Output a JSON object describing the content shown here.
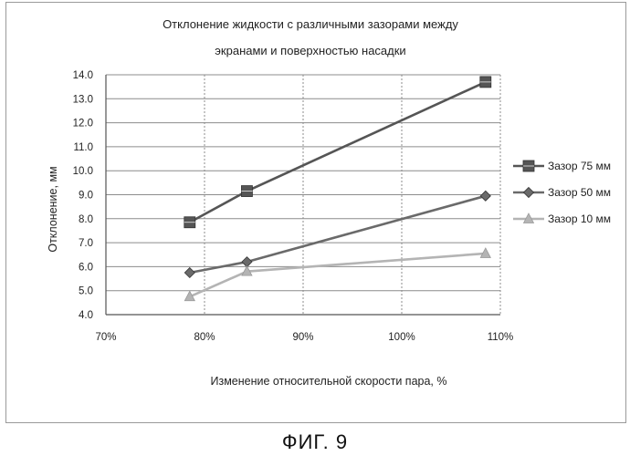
{
  "figure": {
    "caption": "ФИГ. 9"
  },
  "chart_data": {
    "type": "line",
    "title_lines": [
      "Отклонение жидкости с различными зазорами между",
      "экранами и поверхностью насадки"
    ],
    "xlabel": "Изменение относительной скорости пара, %",
    "ylabel": "Отклонение, мм",
    "xlim": [
      70,
      110
    ],
    "ylim": [
      4.0,
      14.0
    ],
    "x_ticks": [
      70,
      80,
      90,
      100,
      110
    ],
    "x_tick_labels": [
      "70%",
      "80%",
      "90%",
      "100%",
      "110%"
    ],
    "y_ticks": [
      4.0,
      5.0,
      6.0,
      7.0,
      8.0,
      9.0,
      10.0,
      11.0,
      12.0,
      13.0,
      14.0
    ],
    "y_tick_labels": [
      "4.0",
      "5.0",
      "6.0",
      "7.0",
      "8.0",
      "9.0",
      "10.0",
      "11.0",
      "12.0",
      "13.0",
      "14.0"
    ],
    "grid": true,
    "legend_position": "right",
    "series": [
      {
        "name": "Зазор 75 мм",
        "marker": "square",
        "color": "#555555",
        "x": [
          78.5,
          84.3,
          108.5
        ],
        "y": [
          7.85,
          9.15,
          13.7
        ]
      },
      {
        "name": "Зазор 50 мм",
        "marker": "diamond",
        "color": "#6a6a6a",
        "x": [
          78.5,
          84.3,
          108.5
        ],
        "y": [
          5.75,
          6.2,
          8.95
        ]
      },
      {
        "name": "Зазор 10 мм",
        "marker": "triangle",
        "color": "#b4b4b4",
        "x": [
          78.5,
          84.3,
          108.5
        ],
        "y": [
          4.75,
          5.8,
          6.55
        ]
      }
    ]
  }
}
